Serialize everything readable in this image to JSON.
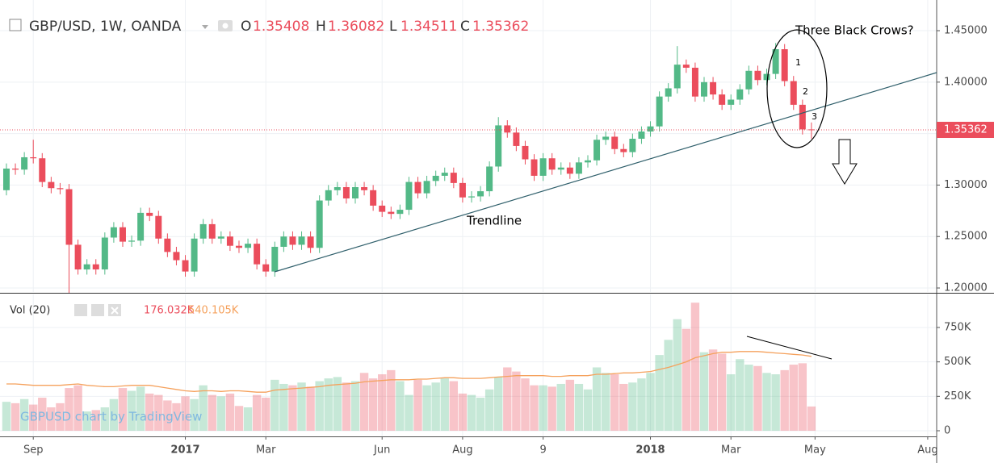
{
  "chart_data": {
    "type": "candlestick",
    "title": "GBP/USD, 1W, OANDA",
    "ohlc_labels": [
      "O",
      "H",
      "L",
      "C"
    ],
    "ohlc_values": [
      1.35408,
      1.36082,
      1.34511,
      1.35362
    ],
    "up_color": "#53b987",
    "down_color": "#eb4d5c",
    "xlim": [
      -0.72,
      104
    ],
    "xticks": [
      {
        "value": 3,
        "label": "Sep"
      },
      {
        "value": 20,
        "label": "2017"
      },
      {
        "value": 29,
        "label": "Mar"
      },
      {
        "value": 42,
        "label": "Jun"
      },
      {
        "value": 51,
        "label": "Aug"
      },
      {
        "value": 60,
        "label": "9"
      },
      {
        "value": 72,
        "label": "2018"
      },
      {
        "value": 81,
        "label": "Mar"
      },
      {
        "value": 90.4,
        "label": "May"
      },
      {
        "value": 103,
        "label": "Aug"
      }
    ],
    "ylim": [
      1.1961,
      1.4798
    ],
    "yticks": [
      {
        "value": 1.2,
        "label": "1.20000"
      },
      {
        "value": 1.25,
        "label": "1.25000"
      },
      {
        "value": 1.3,
        "label": "1.30000"
      },
      {
        "value": 1.35,
        "label": "1.35000"
      },
      {
        "value": 1.4,
        "label": "1.40000"
      },
      {
        "value": 1.45,
        "label": "1.45000"
      }
    ],
    "grid": true,
    "last_price": 1.35362,
    "open": [
      1.295,
      1.316,
      1.315,
      1.327,
      1.326,
      1.303,
      1.297,
      1.296,
      1.242,
      1.218,
      1.223,
      1.218,
      1.249,
      1.259,
      1.245,
      1.246,
      1.273,
      1.27,
      1.248,
      1.235,
      1.227,
      1.216,
      1.248,
      1.262,
      1.248,
      1.25,
      1.241,
      1.239,
      1.243,
      1.223,
      1.216,
      1.24,
      1.25,
      1.242,
      1.25,
      1.239,
      1.285,
      1.295,
      1.298,
      1.287,
      1.298,
      1.295,
      1.28,
      1.274,
      1.272,
      1.276,
      1.303,
      1.292,
      1.304,
      1.309,
      1.312,
      1.302,
      1.288,
      1.289,
      1.294,
      1.318,
      1.358,
      1.351,
      1.338,
      1.325,
      1.309,
      1.326,
      1.315,
      1.317,
      1.311,
      1.322,
      1.324,
      1.344,
      1.347,
      1.335,
      1.332,
      1.345,
      1.352,
      1.357,
      1.386,
      1.394,
      1.417,
      1.414,
      1.386,
      1.4,
      1.388,
      1.378,
      1.383,
      1.393,
      1.411,
      1.402,
      1.408,
      1.432,
      1.401,
      1.378,
      1.35408
    ],
    "high": [
      1.321,
      1.321,
      1.332,
      1.344,
      1.331,
      1.308,
      1.302,
      1.301,
      1.247,
      1.228,
      1.228,
      1.254,
      1.264,
      1.264,
      1.251,
      1.278,
      1.278,
      1.275,
      1.253,
      1.24,
      1.232,
      1.253,
      1.267,
      1.267,
      1.255,
      1.255,
      1.246,
      1.248,
      1.248,
      1.228,
      1.245,
      1.255,
      1.255,
      1.255,
      1.255,
      1.29,
      1.3,
      1.303,
      1.303,
      1.303,
      1.303,
      1.3,
      1.285,
      1.279,
      1.281,
      1.308,
      1.308,
      1.309,
      1.314,
      1.317,
      1.317,
      1.307,
      1.294,
      1.299,
      1.323,
      1.366,
      1.363,
      1.356,
      1.343,
      1.33,
      1.331,
      1.331,
      1.322,
      1.322,
      1.327,
      1.329,
      1.349,
      1.352,
      1.352,
      1.34,
      1.35,
      1.357,
      1.362,
      1.391,
      1.399,
      1.435,
      1.422,
      1.419,
      1.405,
      1.405,
      1.393,
      1.388,
      1.398,
      1.416,
      1.416,
      1.413,
      1.438,
      1.437,
      1.406,
      1.383,
      1.36082
    ],
    "low": [
      1.29,
      1.31,
      1.31,
      1.321,
      1.298,
      1.292,
      1.291,
      1.195,
      1.213,
      1.213,
      1.213,
      1.213,
      1.244,
      1.24,
      1.24,
      1.241,
      1.265,
      1.243,
      1.23,
      1.222,
      1.211,
      1.211,
      1.243,
      1.243,
      1.243,
      1.236,
      1.234,
      1.234,
      1.218,
      1.211,
      1.211,
      1.235,
      1.237,
      1.237,
      1.234,
      1.234,
      1.28,
      1.29,
      1.282,
      1.282,
      1.29,
      1.275,
      1.269,
      1.267,
      1.267,
      1.271,
      1.287,
      1.287,
      1.299,
      1.304,
      1.297,
      1.283,
      1.283,
      1.284,
      1.289,
      1.313,
      1.346,
      1.333,
      1.32,
      1.304,
      1.304,
      1.31,
      1.31,
      1.306,
      1.306,
      1.317,
      1.319,
      1.339,
      1.33,
      1.327,
      1.327,
      1.34,
      1.347,
      1.352,
      1.381,
      1.389,
      1.409,
      1.381,
      1.381,
      1.383,
      1.373,
      1.373,
      1.378,
      1.388,
      1.397,
      1.397,
      1.403,
      1.396,
      1.373,
      1.3491,
      1.34511
    ],
    "close": [
      1.316,
      1.315,
      1.327,
      1.326,
      1.303,
      1.297,
      1.296,
      1.242,
      1.218,
      1.223,
      1.218,
      1.249,
      1.259,
      1.245,
      1.246,
      1.273,
      1.27,
      1.248,
      1.235,
      1.227,
      1.216,
      1.248,
      1.262,
      1.248,
      1.25,
      1.241,
      1.239,
      1.243,
      1.223,
      1.216,
      1.24,
      1.25,
      1.242,
      1.25,
      1.239,
      1.285,
      1.295,
      1.298,
      1.287,
      1.298,
      1.295,
      1.28,
      1.274,
      1.272,
      1.276,
      1.303,
      1.292,
      1.304,
      1.309,
      1.312,
      1.302,
      1.288,
      1.289,
      1.294,
      1.318,
      1.358,
      1.351,
      1.338,
      1.325,
      1.309,
      1.326,
      1.315,
      1.317,
      1.311,
      1.322,
      1.324,
      1.344,
      1.347,
      1.335,
      1.332,
      1.345,
      1.352,
      1.357,
      1.386,
      1.394,
      1.417,
      1.414,
      1.386,
      1.4,
      1.388,
      1.378,
      1.383,
      1.393,
      1.411,
      1.402,
      1.408,
      1.432,
      1.401,
      1.378,
      1.3541,
      1.35362
    ],
    "volume": {
      "label": "Vol (20)",
      "last": {
        "value": 176.032,
        "label": "176.032K"
      },
      "ma_last": {
        "value": 540.105,
        "label": "540.105K"
      },
      "ma_color": "#f5a15c",
      "ylim": [
        -41,
        990
      ],
      "yticks": [
        0,
        {
          "value": 250,
          "label": "250K"
        },
        {
          "value": 500,
          "label": "500K"
        },
        {
          "value": 750,
          "label": "750K"
        }
      ],
      "values": [
        210,
        200,
        230,
        190,
        240,
        170,
        200,
        310,
        330,
        140,
        150,
        170,
        230,
        310,
        290,
        320,
        270,
        260,
        220,
        200,
        250,
        230,
        330,
        260,
        250,
        270,
        180,
        170,
        260,
        240,
        370,
        340,
        330,
        350,
        320,
        360,
        380,
        390,
        350,
        360,
        420,
        380,
        410,
        440,
        360,
        260,
        370,
        330,
        350,
        380,
        360,
        270,
        260,
        240,
        300,
        390,
        460,
        430,
        380,
        330,
        330,
        320,
        340,
        370,
        340,
        300,
        460,
        420,
        410,
        340,
        350,
        380,
        420,
        550,
        660,
        810,
        740,
        930,
        570,
        590,
        560,
        410,
        520,
        480,
        470,
        420,
        410,
        440,
        480,
        490,
        176.032
      ],
      "ma": [
        340,
        340,
        335,
        330,
        330,
        330,
        330,
        335,
        340,
        330,
        325,
        320,
        320,
        325,
        330,
        330,
        330,
        320,
        310,
        300,
        290,
        285,
        290,
        290,
        285,
        290,
        290,
        285,
        280,
        280,
        295,
        300,
        305,
        310,
        315,
        320,
        330,
        335,
        340,
        345,
        355,
        360,
        365,
        370,
        370,
        370,
        375,
        375,
        380,
        385,
        385,
        380,
        380,
        380,
        385,
        390,
        395,
        400,
        400,
        400,
        400,
        395,
        395,
        400,
        400,
        400,
        410,
        410,
        415,
        420,
        420,
        425,
        430,
        445,
        460,
        480,
        500,
        530,
        545,
        560,
        570,
        570,
        575,
        575,
        575,
        570,
        565,
        560,
        555,
        550,
        540.105
      ]
    },
    "annotations": {
      "crows": "Three Black Crows?",
      "n1": "1",
      "n2": "2",
      "n3": "3",
      "trendline": "Trendline",
      "watermark": "GBPUSD chart by TradingView"
    }
  }
}
